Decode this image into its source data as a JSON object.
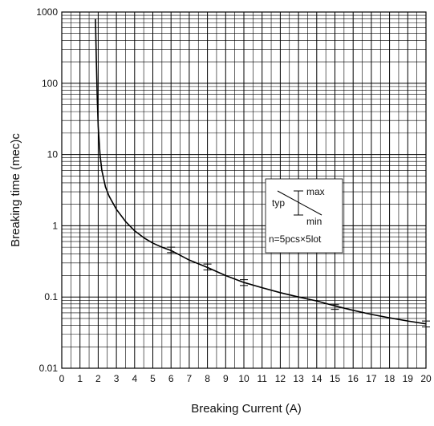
{
  "chart_data": {
    "type": "line",
    "xlabel": "Breaking Current (A)",
    "ylabel": "Breaking time (mec)c",
    "xlim": [
      0,
      20
    ],
    "ylim": [
      0.01,
      1000
    ],
    "yscale": "log",
    "grid": true,
    "x_ticks": [
      "0",
      "1",
      "2",
      "3",
      "4",
      "5",
      "6",
      "7",
      "8",
      "9",
      "10",
      "11",
      "12",
      "13",
      "14",
      "15",
      "16",
      "17",
      "18",
      "19",
      "20"
    ],
    "y_ticks": [
      {
        "value": 0.01,
        "label": "0.01"
      },
      {
        "value": 0.1,
        "label": "0.1"
      },
      {
        "value": 1,
        "label": "1"
      },
      {
        "value": 10,
        "label": "10"
      },
      {
        "value": 100,
        "label": "100"
      },
      {
        "value": 1000,
        "label": "1000"
      }
    ],
    "series": [
      {
        "x": [
          1.85,
          1.9,
          1.95,
          2.0,
          2.1,
          2.2,
          2.4,
          2.6,
          3.0,
          3.5,
          4.0,
          4.5,
          5.0,
          5.5,
          6.0,
          7.0,
          8.0,
          9.0,
          10.0,
          11.0,
          12.0,
          13.0,
          14.0,
          15.0,
          16.0,
          17.0,
          18.0,
          19.0,
          20.0
        ],
        "y": [
          800,
          200,
          60,
          25,
          10,
          6,
          3.5,
          2.6,
          1.7,
          1.15,
          0.85,
          0.68,
          0.57,
          0.5,
          0.45,
          0.33,
          0.26,
          0.2,
          0.16,
          0.135,
          0.115,
          0.1,
          0.088,
          0.075,
          0.065,
          0.057,
          0.051,
          0.046,
          0.042
        ]
      }
    ],
    "error_bars": [
      {
        "x": 6,
        "y": 0.46,
        "min": 0.42,
        "max": 0.5
      },
      {
        "x": 8,
        "y": 0.26,
        "min": 0.24,
        "max": 0.29
      },
      {
        "x": 10,
        "y": 0.16,
        "min": 0.145,
        "max": 0.175
      },
      {
        "x": 15,
        "y": 0.073,
        "min": 0.067,
        "max": 0.078
      },
      {
        "x": 20,
        "y": 0.042,
        "min": 0.038,
        "max": 0.046
      }
    ],
    "legend": {
      "typ": "typ",
      "max": "max",
      "min": "min",
      "note": "n=5pcs×5lot",
      "placement": "right-middle"
    }
  }
}
